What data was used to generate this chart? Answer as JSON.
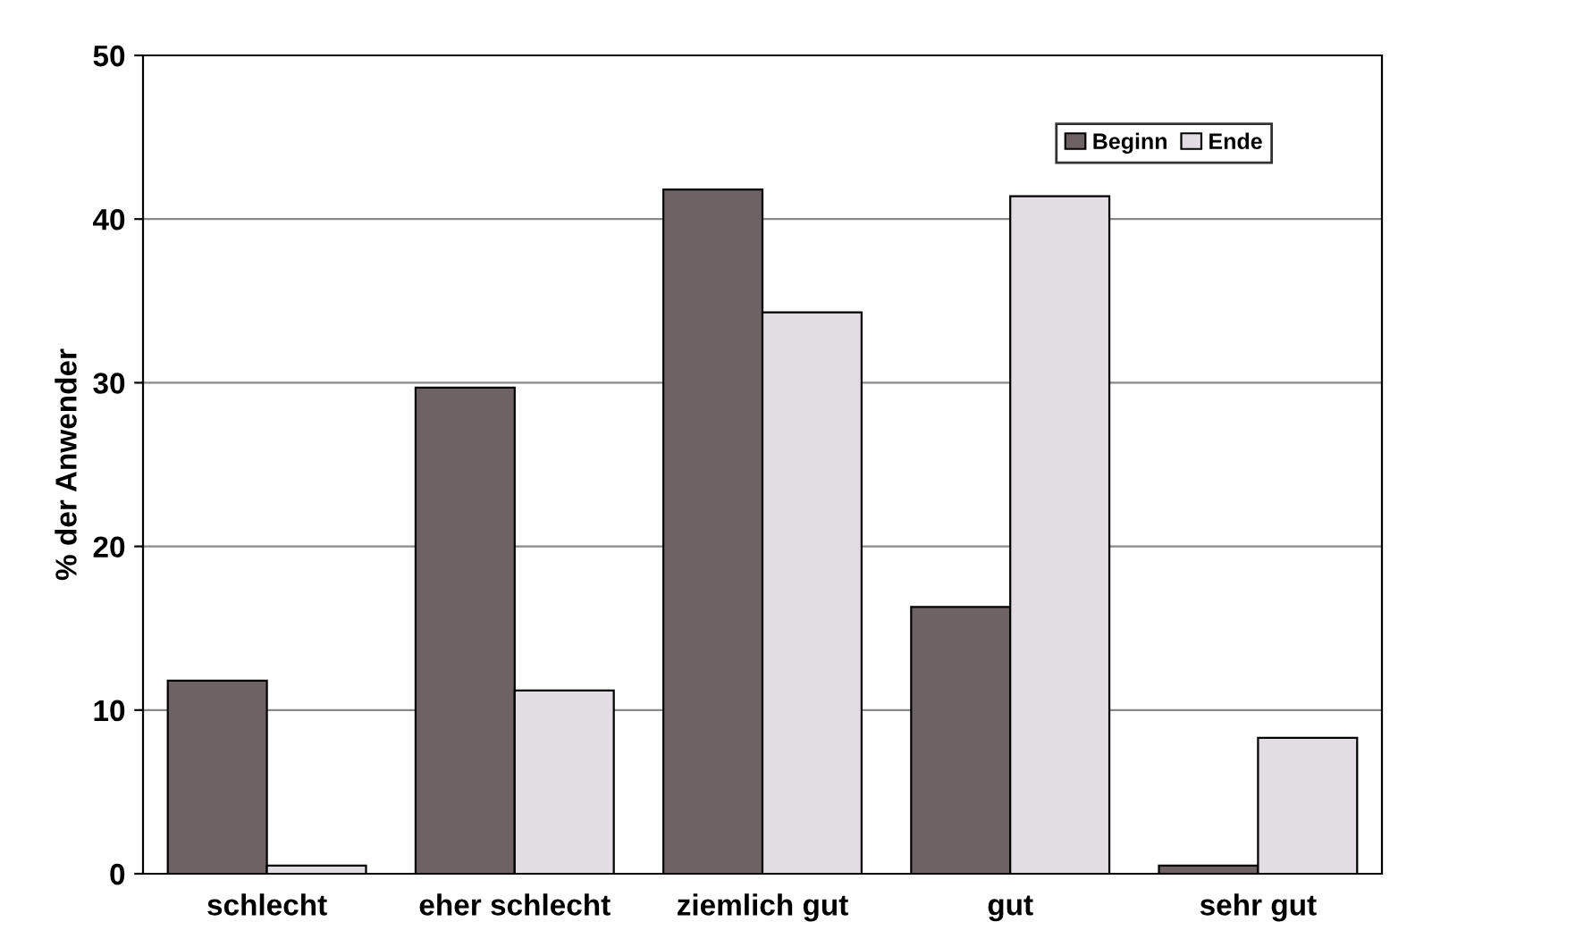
{
  "chart_data": {
    "type": "bar",
    "ylabel": "% der Anwender",
    "categories": [
      "schlecht",
      "eher schlecht",
      "ziemlich gut",
      "gut",
      "sehr gut"
    ],
    "series": [
      {
        "name": "Beginn",
        "color": "#6e6264",
        "values": [
          11.8,
          29.7,
          41.8,
          16.3,
          0.5
        ]
      },
      {
        "name": "Ende",
        "color": "#e2dde3",
        "values": [
          0.5,
          11.2,
          34.3,
          41.4,
          8.3
        ]
      }
    ],
    "ylim": [
      0,
      50
    ],
    "yticks": [
      0,
      10,
      20,
      30,
      40,
      50
    ],
    "grid": "y",
    "legend": "top right"
  }
}
